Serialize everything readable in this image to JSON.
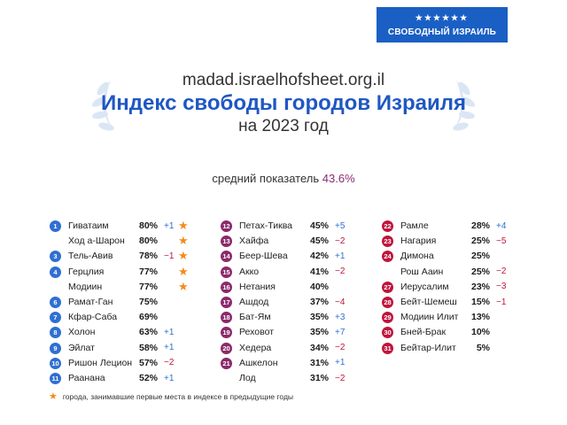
{
  "logo": "СВОБОДНЫЙ ИЗРАИЛЬ",
  "header": {
    "url": "madad.israelhofsheet.org.il",
    "title": "Индекс свободы городов Израиля",
    "subtitle": "на 2023 год"
  },
  "average": {
    "label": "средний показатель",
    "value": "43.6%"
  },
  "columns": [
    [
      {
        "rank": "1",
        "name": "Гиватаим",
        "score": "80%",
        "change": "+1",
        "star": true
      },
      {
        "name": "Ход а-Шарон",
        "score": "80%",
        "star": true
      },
      {
        "rank": "3",
        "name": "Тель-Авив",
        "score": "78%",
        "change": "−1",
        "star": true
      },
      {
        "rank": "4",
        "name": "Герцлия",
        "score": "77%",
        "star": true
      },
      {
        "name": "Модиин",
        "score": "77%",
        "star": true
      },
      {
        "rank": "6",
        "name": "Рамат-Ган",
        "score": "75%"
      },
      {
        "rank": "7",
        "name": "Кфар-Саба",
        "score": "69%"
      },
      {
        "rank": "8",
        "name": "Холон",
        "score": "63%",
        "change": "+1"
      },
      {
        "rank": "9",
        "name": "Эйлат",
        "score": "58%",
        "change": "+1"
      },
      {
        "rank": "10",
        "name": "Ришон Лецион",
        "score": "57%",
        "change": "−2"
      },
      {
        "rank": "11",
        "name": "Раанана",
        "score": "52%",
        "change": "+1"
      }
    ],
    [
      {
        "rank": "12",
        "name": "Петах-Тиква",
        "score": "45%",
        "change": "+5"
      },
      {
        "rank": "13",
        "name": "Хайфа",
        "score": "45%",
        "change": "−2"
      },
      {
        "rank": "14",
        "name": "Беер-Шева",
        "score": "42%",
        "change": "+1"
      },
      {
        "rank": "15",
        "name": "Акко",
        "score": "41%",
        "change": "−2"
      },
      {
        "rank": "16",
        "name": "Нетания",
        "score": "40%"
      },
      {
        "rank": "17",
        "name": "Ашдод",
        "score": "37%",
        "change": "−4"
      },
      {
        "rank": "18",
        "name": "Бат-Ям",
        "score": "35%",
        "change": "+3"
      },
      {
        "rank": "19",
        "name": "Реховот",
        "score": "35%",
        "change": "+7"
      },
      {
        "rank": "20",
        "name": "Хедера",
        "score": "34%",
        "change": "−2"
      },
      {
        "rank": "21",
        "name": "Ашкелон",
        "score": "31%",
        "change": "+1"
      },
      {
        "name": "Лод",
        "score": "31%",
        "change": "−2"
      }
    ],
    [
      {
        "rank": "22",
        "name": "Рамле",
        "score": "28%",
        "change": "+4"
      },
      {
        "rank": "23",
        "name": "Нагария",
        "score": "25%",
        "change": "−5"
      },
      {
        "rank": "24",
        "name": "Димона",
        "score": "25%"
      },
      {
        "name": "Рош Ааин",
        "score": "25%",
        "change": "−2"
      },
      {
        "rank": "27",
        "name": "Иерусалим",
        "score": "23%",
        "change": "−3"
      },
      {
        "rank": "28",
        "name": "Бейт-Шемеш",
        "score": "15%",
        "change": "−1"
      },
      {
        "rank": "29",
        "name": "Модиин Илит",
        "score": "13%"
      },
      {
        "rank": "30",
        "name": "Бней-Брак",
        "score": "10%"
      },
      {
        "rank": "31",
        "name": "Бейтар-Илит",
        "score": "5%"
      }
    ]
  ],
  "footnote": "города, занимавшие первые места в индексе в предыдущие годы"
}
